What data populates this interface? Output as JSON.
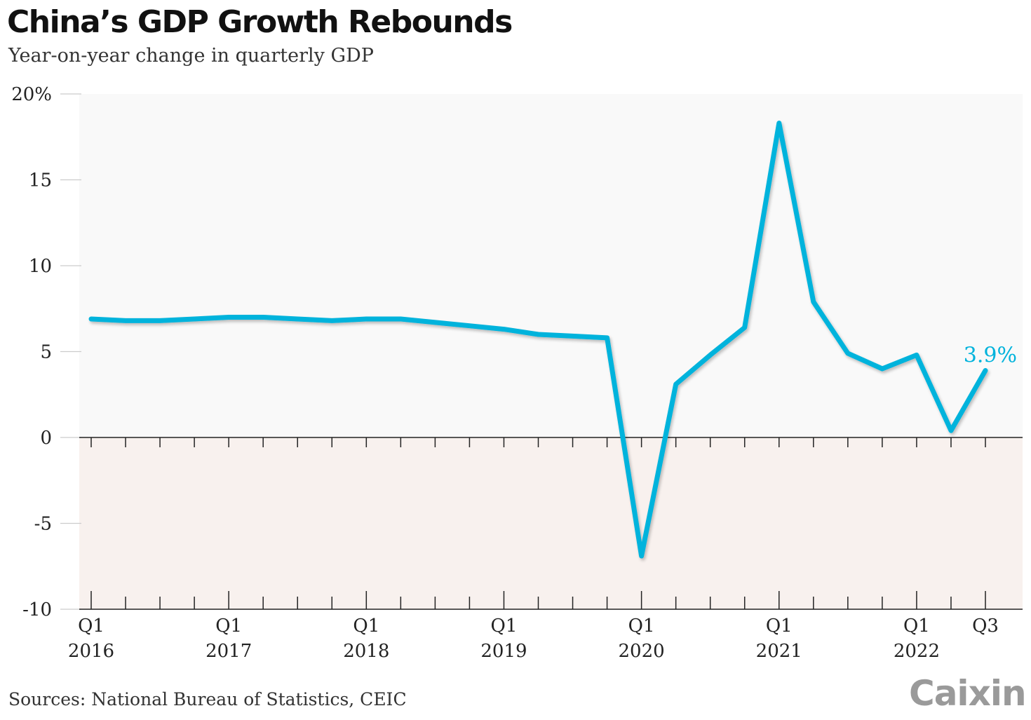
{
  "title": "China’s GDP Growth Rebounds",
  "subtitle": "Year-on-year change in quarterly GDP",
  "source": "Sources: National Bureau of Statistics, CEIC",
  "logo": "Caixin",
  "colors": {
    "line": "#00b3dc",
    "positive_band": "#f9f9f9",
    "negative_band": "#f8f1ee",
    "axis": "#222222",
    "logo": "#9a9a9a"
  },
  "chart_data": {
    "type": "line",
    "title": "China’s GDP Growth Rebounds",
    "subtitle": "Year-on-year change in quarterly GDP",
    "xlabel": "",
    "ylabel": "",
    "ylim": [
      -10,
      20
    ],
    "yticks": [
      {
        "value": 20,
        "label": "20%"
      },
      {
        "value": 15,
        "label": "15"
      },
      {
        "value": 10,
        "label": "10"
      },
      {
        "value": 5,
        "label": "5"
      },
      {
        "value": 0,
        "label": "0"
      },
      {
        "value": -5,
        "label": "-5"
      },
      {
        "value": -10,
        "label": "-10"
      }
    ],
    "x": [
      "2016 Q1",
      "2016 Q2",
      "2016 Q3",
      "2016 Q4",
      "2017 Q1",
      "2017 Q2",
      "2017 Q3",
      "2017 Q4",
      "2018 Q1",
      "2018 Q2",
      "2018 Q3",
      "2018 Q4",
      "2019 Q1",
      "2019 Q2",
      "2019 Q3",
      "2019 Q4",
      "2020 Q1",
      "2020 Q2",
      "2020 Q3",
      "2020 Q4",
      "2021 Q1",
      "2021 Q2",
      "2021 Q3",
      "2021 Q4",
      "2022 Q1",
      "2022 Q2",
      "2022 Q3"
    ],
    "xtick_labels": [
      {
        "index": 0,
        "line1": "Q1",
        "line2": "2016"
      },
      {
        "index": 4,
        "line1": "Q1",
        "line2": "2017"
      },
      {
        "index": 8,
        "line1": "Q1",
        "line2": "2018"
      },
      {
        "index": 12,
        "line1": "Q1",
        "line2": "2019"
      },
      {
        "index": 16,
        "line1": "Q1",
        "line2": "2020"
      },
      {
        "index": 20,
        "line1": "Q1",
        "line2": "2021"
      },
      {
        "index": 24,
        "line1": "Q1",
        "line2": "2022"
      },
      {
        "index": 26,
        "line1": "Q3",
        "line2": ""
      }
    ],
    "series": [
      {
        "values": [
          6.9,
          6.8,
          6.8,
          6.9,
          7.0,
          7.0,
          6.9,
          6.8,
          6.9,
          6.9,
          6.7,
          6.5,
          6.3,
          6.0,
          5.9,
          5.8,
          -6.9,
          3.1,
          4.8,
          6.4,
          18.3,
          7.9,
          4.9,
          4.0,
          4.8,
          0.4,
          3.9
        ]
      }
    ],
    "annotations": [
      {
        "index": 26,
        "text": "3.9%"
      }
    ],
    "grid": false,
    "legend": "none"
  }
}
